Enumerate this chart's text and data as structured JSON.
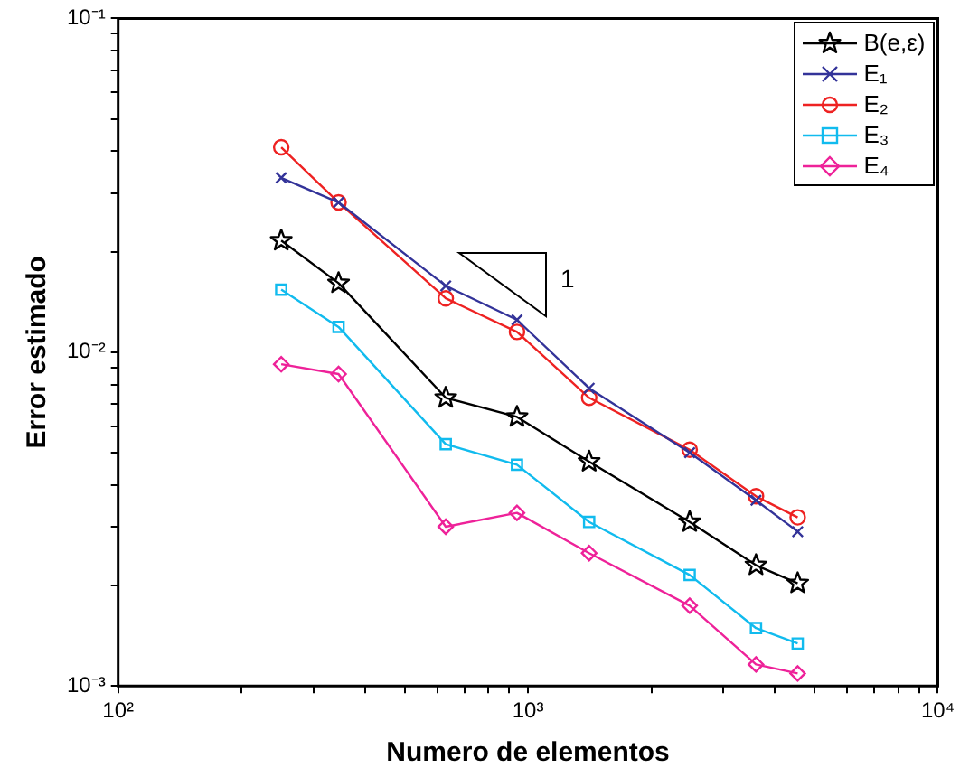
{
  "chart_data": {
    "type": "line",
    "xlabel": "Numero de elementos",
    "ylabel": "Error estimado",
    "log": "xy",
    "grid": false,
    "legend": "top right",
    "xlim": [
      100,
      10000
    ],
    "ylim": [
      0.001,
      0.1
    ],
    "xticks": [
      {
        "value": 100,
        "label": "10²"
      },
      {
        "value": 200,
        "label": null
      },
      {
        "value": 300,
        "label": null
      },
      {
        "value": 400,
        "label": null
      },
      {
        "value": 500,
        "label": null
      },
      {
        "value": 600,
        "label": null
      },
      {
        "value": 700,
        "label": null
      },
      {
        "value": 800,
        "label": null
      },
      {
        "value": 900,
        "label": null
      },
      {
        "value": 1000,
        "label": "10³"
      },
      {
        "value": 2000,
        "label": null
      },
      {
        "value": 3000,
        "label": null
      },
      {
        "value": 4000,
        "label": null
      },
      {
        "value": 5000,
        "label": null
      },
      {
        "value": 6000,
        "label": null
      },
      {
        "value": 7000,
        "label": null
      },
      {
        "value": 8000,
        "label": null
      },
      {
        "value": 9000,
        "label": null
      },
      {
        "value": 10000,
        "label": "10⁴"
      }
    ],
    "yticks": [
      {
        "value": 0.001,
        "label": "10⁻³"
      },
      {
        "value": 0.002,
        "label": null
      },
      {
        "value": 0.003,
        "label": null
      },
      {
        "value": 0.004,
        "label": null
      },
      {
        "value": 0.005,
        "label": null
      },
      {
        "value": 0.006,
        "label": null
      },
      {
        "value": 0.007,
        "label": null
      },
      {
        "value": 0.008,
        "label": null
      },
      {
        "value": 0.009,
        "label": null
      },
      {
        "value": 0.01,
        "label": "10⁻²"
      },
      {
        "value": 0.02,
        "label": null
      },
      {
        "value": 0.03,
        "label": null
      },
      {
        "value": 0.04,
        "label": null
      },
      {
        "value": 0.05,
        "label": null
      },
      {
        "value": 0.06,
        "label": null
      },
      {
        "value": 0.07,
        "label": null
      },
      {
        "value": 0.08,
        "label": null
      },
      {
        "value": 0.09,
        "label": null
      },
      {
        "value": 0.1,
        "label": "10⁻¹"
      }
    ],
    "x": [
      250,
      345,
      630,
      940,
      1410,
      2480,
      3600,
      4550
    ],
    "line_style": "solid",
    "annotations": [
      "1"
    ],
    "series": [
      {
        "name": "B(e,ε)",
        "color": "#000000",
        "marker": "star",
        "values": [
          0.0216,
          0.0161,
          0.0073,
          0.0064,
          0.0047,
          0.0031,
          0.0023,
          0.00203
        ]
      },
      {
        "name": "E₁",
        "color": "#333399",
        "marker": "cross",
        "values": [
          0.0333,
          0.0281,
          0.0158,
          0.0125,
          0.0078,
          0.005,
          0.0036,
          0.0029
        ]
      },
      {
        "name": "E₂",
        "color": "#ee2222",
        "marker": "circle",
        "values": [
          0.0411,
          0.0281,
          0.0145,
          0.0115,
          0.0073,
          0.0051,
          0.0037,
          0.0032
        ]
      },
      {
        "name": "E₃",
        "color": "#11bbee",
        "marker": "square",
        "values": [
          0.0154,
          0.0119,
          0.0053,
          0.0046,
          0.0031,
          0.00215,
          0.00149,
          0.00134
        ]
      },
      {
        "name": "E₄",
        "color": "#ee2299",
        "marker": "diamond",
        "values": [
          0.0092,
          0.0086,
          0.003,
          0.0033,
          0.0025,
          0.00174,
          0.00116,
          0.00109
        ]
      }
    ]
  }
}
